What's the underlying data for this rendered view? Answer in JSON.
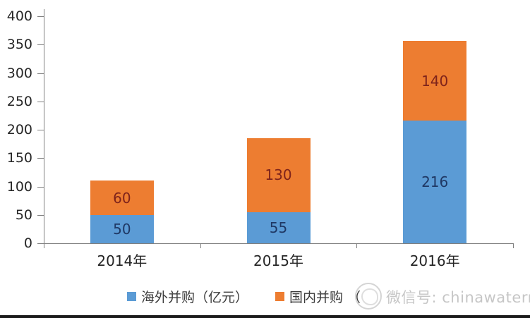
{
  "chart_data": {
    "type": "bar",
    "stacked": true,
    "title": "",
    "xlabel": "",
    "ylabel": "",
    "categories": [
      "2014年",
      "2015年",
      "2016年"
    ],
    "series": [
      {
        "name": "海外并购（亿元）",
        "values": [
          50,
          55,
          216
        ],
        "color": "#5B9BD5",
        "label_color": "#1F3864"
      },
      {
        "name": "国内并购",
        "values": [
          60,
          130,
          140
        ],
        "color": "#ED7D31",
        "label_color": "#7E231B"
      }
    ],
    "totals": [
      110,
      185,
      356
    ],
    "ylim": [
      0,
      400
    ],
    "yticks": [
      0,
      50,
      100,
      150,
      200,
      250,
      300,
      350,
      400
    ],
    "grid": false,
    "legend_position": "bottom"
  },
  "legend": {
    "items": [
      {
        "label": "海外并购（亿元）",
        "color": "#5B9BD5"
      },
      {
        "label": "国内并购 （",
        "color": "#ED7D31"
      }
    ]
  },
  "watermark": {
    "text": "微信号: chinawaternet",
    "logo": "circle-logo",
    "color": "#c6c6c6"
  },
  "colors": {
    "axis": "#808080",
    "tick_label": "#262626",
    "series_blue": "#5B9BD5",
    "series_orange": "#ED7D31",
    "value_label_blue": "#1F3864",
    "value_label_orange": "#7E231B",
    "footer_bar": "#1b1b1b"
  }
}
